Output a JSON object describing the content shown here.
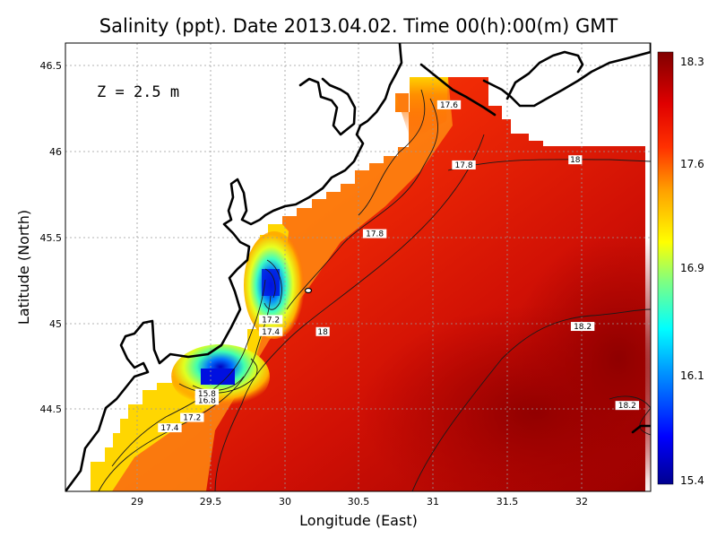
{
  "title": "Salinity (ppt). Date 2013.04.02. Time 00(h):00(m) GMT",
  "depth_label": "Z = 2.5 m",
  "xlabel": "Longitude (East)",
  "ylabel": "Latitude (North)",
  "xticks": [
    "29",
    "29.5",
    "30",
    "30.5",
    "31",
    "31.5",
    "32"
  ],
  "yticks": [
    "44.5",
    "45",
    "45.5",
    "46",
    "46.5"
  ],
  "colorbar": {
    "ticks": [
      "18.3",
      "17.6",
      "16.9",
      "16.1",
      "15.4"
    ],
    "min": 15.4,
    "max": 18.3,
    "colors": [
      "#00008f",
      "#0000ff",
      "#00a0ff",
      "#00ffff",
      "#80ff80",
      "#ffff00",
      "#ffa000",
      "#ff3000",
      "#e00000",
      "#800000"
    ]
  },
  "contour_labels": [
    {
      "text": "17.6",
      "lon": 31.1,
      "lat": 46.27
    },
    {
      "text": "17.8",
      "lon": 31.2,
      "lat": 45.92
    },
    {
      "text": "18",
      "lon": 31.95,
      "lat": 45.95
    },
    {
      "text": "17.8",
      "lon": 30.6,
      "lat": 45.52
    },
    {
      "text": "17.2",
      "lon": 29.9,
      "lat": 45.02
    },
    {
      "text": "17.4",
      "lon": 29.9,
      "lat": 44.95
    },
    {
      "text": "18",
      "lon": 30.25,
      "lat": 44.95
    },
    {
      "text": "18.2",
      "lon": 32.0,
      "lat": 44.98
    },
    {
      "text": "18.2",
      "lon": 32.3,
      "lat": 44.52
    },
    {
      "text": "16.8",
      "lon": 29.47,
      "lat": 44.55
    },
    {
      "text": "15.8",
      "lon": 29.47,
      "lat": 44.59
    },
    {
      "text": "17.2",
      "lon": 29.37,
      "lat": 44.45
    },
    {
      "text": "17.4",
      "lon": 29.22,
      "lat": 44.39
    }
  ]
}
